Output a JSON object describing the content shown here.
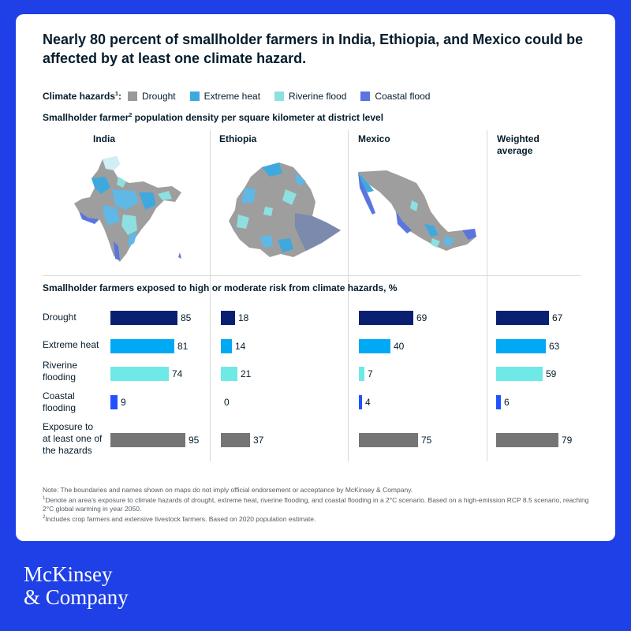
{
  "title": "Nearly 80 percent of smallholder farmers in India, Ethiopia, and Mexico could be affected by at least one climate hazard.",
  "legend": {
    "label": "Climate hazards",
    "label_note": "1",
    "items": [
      {
        "name": "Drought",
        "color": "#9a9a9a"
      },
      {
        "name": "Extreme heat",
        "color": "#3fa9dd"
      },
      {
        "name": "Riverine flood",
        "color": "#8ee0e0"
      },
      {
        "name": "Coastal flood",
        "color": "#5a75e0"
      }
    ]
  },
  "maps_subtitle": {
    "before": "Smallholder farmer",
    "note": "2",
    "after": " population density per square kilometer at district level"
  },
  "columns": [
    {
      "name": "India"
    },
    {
      "name": "Ethiopia"
    },
    {
      "name": "Mexico"
    },
    {
      "name": "Weighted average"
    }
  ],
  "chart_subtitle": "Smallholder farmers exposed to high or moderate risk from climate hazards, %",
  "chart_data": {
    "type": "bar",
    "orientation": "horizontal",
    "title": "Smallholder farmers exposed to high or moderate risk from climate hazards, %",
    "categories": [
      "Drought",
      "Extreme heat",
      "Riverine flooding",
      "Coastal flooding",
      "Exposure to at least one of the hazards"
    ],
    "category_colors": [
      "#0b1f72",
      "#00a9f4",
      "#6ee9e5",
      "#2251ff",
      "#757575"
    ],
    "series": [
      {
        "name": "India",
        "values": [
          85,
          81,
          74,
          9,
          95
        ]
      },
      {
        "name": "Ethiopia",
        "values": [
          18,
          14,
          21,
          0,
          37
        ]
      },
      {
        "name": "Mexico",
        "values": [
          69,
          40,
          7,
          4,
          75
        ]
      },
      {
        "name": "Weighted average",
        "values": [
          67,
          63,
          59,
          6,
          79
        ]
      }
    ],
    "xlim": [
      0,
      100
    ]
  },
  "row_labels": [
    [
      "Drought"
    ],
    [
      "Extreme heat"
    ],
    [
      "Riverine",
      "flooding"
    ],
    [
      "Coastal",
      "flooding"
    ],
    [
      "Exposure to",
      "at least one of",
      "the hazards"
    ]
  ],
  "notes": {
    "line1": "Note: The boundaries and names shown on maps do not imply official endorsement or acceptance by McKinsey & Company.",
    "line2_note": "1",
    "line2": "Denote an area’s exposure to climate hazards of drought, extreme heat, riverine flooding, and coastal flooding in a 2°C scenario. Based on a high-emission RCP 8.5 scenario, reaching 2°C global warming in year 2050.",
    "line3_note": "2",
    "line3": "Includes crop farmers and extensive livestock farmers. Based on 2020 population estimate."
  },
  "logo": {
    "line1": "McKinsey",
    "line2": "& Company"
  }
}
